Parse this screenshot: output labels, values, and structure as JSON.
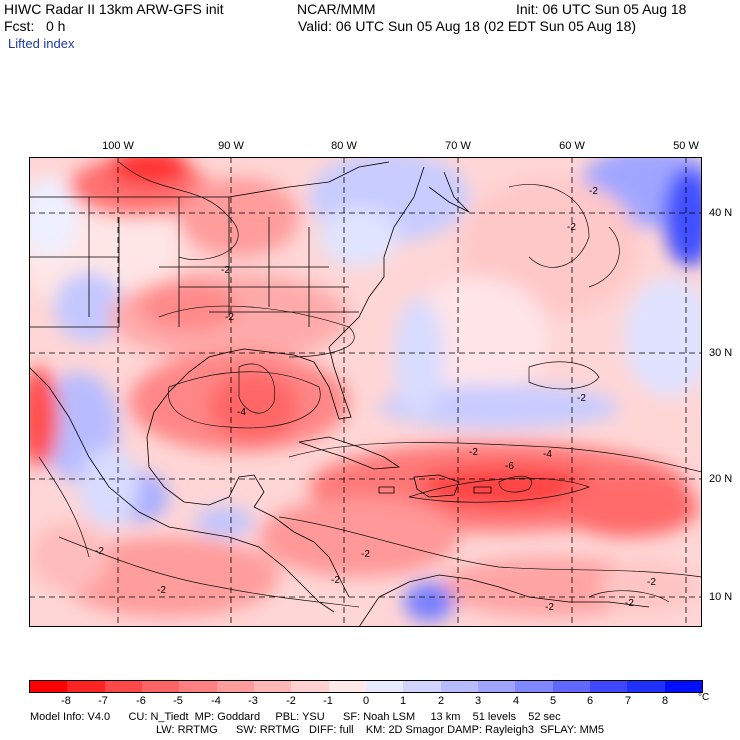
{
  "header": {
    "title": "HIWC Radar II 13km ARW-GFS init",
    "source": "NCAR/MMM",
    "init": "Init: 06 UTC Sun 05 Aug 18",
    "fcst": "Fcst:   0 h",
    "valid": "Valid: 06 UTC Sun 05 Aug 18 (02 EDT Sun 05 Aug 18)",
    "field": "Lifted index"
  },
  "map": {
    "lon_labels": [
      "100 W",
      "90 W",
      "80 W",
      "70 W",
      "60 W",
      "50 W"
    ],
    "lat_labels": [
      "40 N",
      "30 N",
      "20 N",
      "10 N"
    ],
    "contour_labels": [
      "-2",
      "-2",
      "-2",
      "-2",
      "-2",
      "-4",
      "-4",
      "-6",
      "-2",
      "-2",
      "-2",
      "-2",
      "-2",
      "-2",
      "-2",
      "-2"
    ]
  },
  "colorbar": {
    "ticks": [
      "-8",
      "-7",
      "-6",
      "-5",
      "-4",
      "-3",
      "-2",
      "-1",
      "0",
      "1",
      "2",
      "3",
      "4",
      "5",
      "6",
      "7",
      "8"
    ],
    "unit": "°C",
    "colors": [
      "#ff0000",
      "#ff2424",
      "#ff4848",
      "#ff6464",
      "#ff8080",
      "#ff9c9c",
      "#ffb6b6",
      "#ffd0d0",
      "#ffe8e8",
      "#e8eaff",
      "#d0d4ff",
      "#b8bcff",
      "#a0a4ff",
      "#8088ff",
      "#6068ff",
      "#4048ff",
      "#2030ff",
      "#0010ff"
    ]
  },
  "footer": {
    "line1": "Model Info: V4.0      CU: N_Tiedt  MP: Goddard     PBL: YSU      SF: Noah LSM     13 km    51 levels    52 sec",
    "line2": "LW: RRTMG      SW: RRTMG   DIFF: full    KM: 2D Smagor DAMP: Rayleigh3  SFLAY: MM5"
  }
}
